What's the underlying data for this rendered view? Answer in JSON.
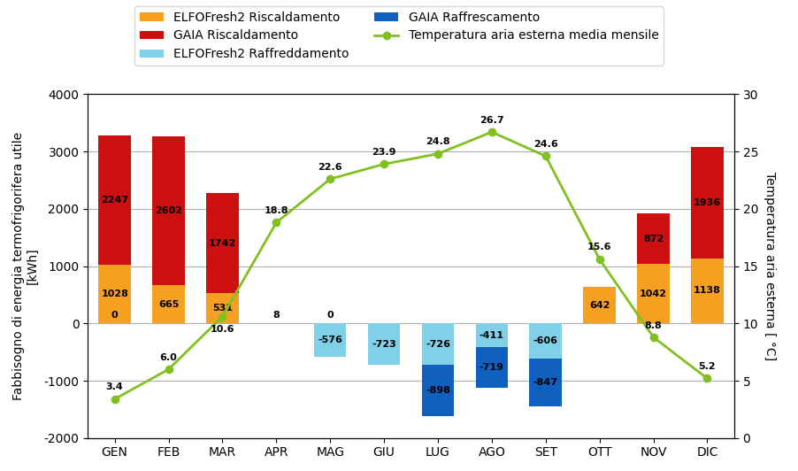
{
  "chart_data": {
    "type": "bar",
    "stacked": true,
    "data_labels": true,
    "grid": true,
    "legend": "upper center",
    "categories": [
      "GEN",
      "FEB",
      "MAR",
      "APR",
      "MAG",
      "GIU",
      "LUG",
      "AGO",
      "SET",
      "OTT",
      "NOV",
      "DIC"
    ],
    "y_label": "Fabbisogno di energia termofrigorifera utile\n[kWh]",
    "y2_label": "Temperatura aria esterna [ °C]",
    "ylim": [
      -2000,
      4000
    ],
    "yticks": [
      -2000,
      -1000,
      0,
      1000,
      2000,
      3000,
      4000
    ],
    "y2lim": [
      0,
      30
    ],
    "y2ticks": [
      0,
      5,
      10,
      15,
      20,
      25,
      30
    ],
    "series": [
      {
        "name": "ELFOFresh2 Riscaldamento",
        "color": "#F5A020",
        "values": [
          1028,
          665,
          531,
          8,
          0,
          0,
          0,
          0,
          0,
          642,
          1042,
          1138
        ],
        "value_labels": [
          "1028",
          "665",
          "531",
          "8",
          null,
          null,
          null,
          null,
          null,
          "642",
          "1042",
          "1138"
        ]
      },
      {
        "name": "GAIA Riscaldamento",
        "color": "#CC1010",
        "values": [
          2247,
          2602,
          1742,
          0,
          0,
          0,
          0,
          0,
          0,
          0,
          872,
          1936
        ],
        "value_labels": [
          "2247",
          "2602",
          "1742",
          null,
          null,
          null,
          null,
          null,
          null,
          null,
          "872",
          "1936"
        ]
      },
      {
        "name": "ELFOFresh2 Raffreddamento",
        "color": "#80D0E8",
        "values": [
          0,
          0,
          0,
          0,
          -576,
          -723,
          -726,
          -411,
          -606,
          0,
          0,
          0
        ],
        "value_labels": [
          "0",
          null,
          null,
          null,
          "-576",
          "-723",
          "-726",
          "-411",
          "-606",
          null,
          null,
          null
        ]
      },
      {
        "name": "GAIA Raffrescamento",
        "color": "#1060C0",
        "values": [
          0,
          0,
          0,
          0,
          0,
          0,
          -898,
          -719,
          -847,
          0,
          0,
          0
        ],
        "value_labels": [
          null,
          null,
          null,
          null,
          "0",
          null,
          "-898",
          "-719",
          "-847",
          null,
          null,
          null
        ]
      },
      {
        "name": "Temperatura aria esterna media mensile",
        "type": "line",
        "axis": "y2",
        "color": "#80C020",
        "marker": "o",
        "values": [
          3.4,
          6.0,
          10.6,
          18.8,
          22.6,
          23.9,
          24.8,
          26.7,
          24.6,
          15.6,
          8.8,
          5.2
        ],
        "value_labels": [
          "3.4",
          "6.0",
          "10.6",
          "18.8",
          "22.6",
          "23.9",
          "24.8",
          "26.7",
          "24.6",
          "15.6",
          "8.8",
          "5.2"
        ]
      }
    ]
  }
}
